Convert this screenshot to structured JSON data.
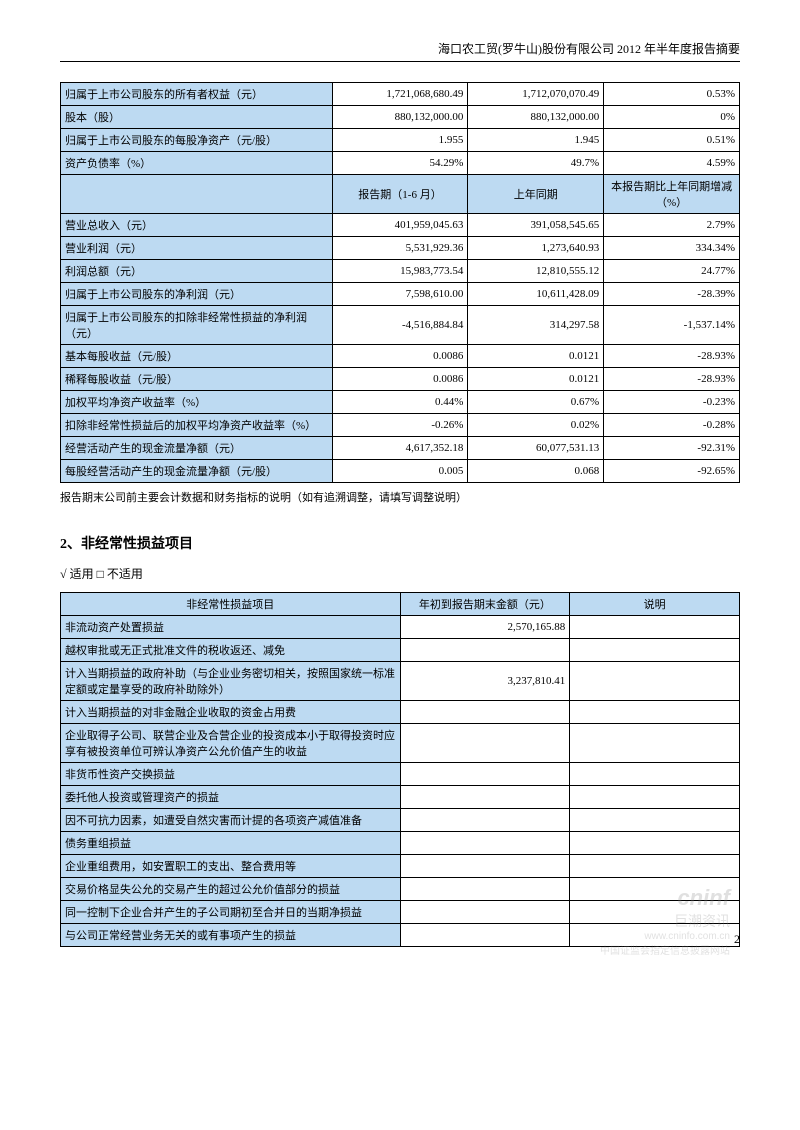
{
  "header": {
    "title": "海口农工贸(罗牛山)股份有限公司 2012 年半年度报告摘要"
  },
  "table1": {
    "rows_top": [
      {
        "label": "归属于上市公司股东的所有者权益（元）",
        "c1": "1,721,068,680.49",
        "c2": "1,712,070,070.49",
        "c3": "0.53%"
      },
      {
        "label": "股本（股）",
        "c1": "880,132,000.00",
        "c2": "880,132,000.00",
        "c3": "0%"
      },
      {
        "label": "归属于上市公司股东的每股净资产（元/股）",
        "c1": "1.955",
        "c2": "1.945",
        "c3": "0.51%"
      },
      {
        "label": "资产负债率（%）",
        "c1": "54.29%",
        "c2": "49.7%",
        "c3": "4.59%"
      }
    ],
    "mid_header": {
      "h1": "报告期（1-6 月）",
      "h2": "上年同期",
      "h3": "本报告期比上年同期增减（%）"
    },
    "rows_bottom": [
      {
        "label": "营业总收入（元）",
        "c1": "401,959,045.63",
        "c2": "391,058,545.65",
        "c3": "2.79%"
      },
      {
        "label": "营业利润（元）",
        "c1": "5,531,929.36",
        "c2": "1,273,640.93",
        "c3": "334.34%"
      },
      {
        "label": "利润总额（元）",
        "c1": "15,983,773.54",
        "c2": "12,810,555.12",
        "c3": "24.77%"
      },
      {
        "label": "归属于上市公司股东的净利润（元）",
        "c1": "7,598,610.00",
        "c2": "10,611,428.09",
        "c3": "-28.39%"
      },
      {
        "label": "归属于上市公司股东的扣除非经常性损益的净利润（元）",
        "c1": "-4,516,884.84",
        "c2": "314,297.58",
        "c3": "-1,537.14%"
      },
      {
        "label": "基本每股收益（元/股）",
        "c1": "0.0086",
        "c2": "0.0121",
        "c3": "-28.93%"
      },
      {
        "label": "稀释每股收益（元/股）",
        "c1": "0.0086",
        "c2": "0.0121",
        "c3": "-28.93%"
      },
      {
        "label": "加权平均净资产收益率（%）",
        "c1": "0.44%",
        "c2": "0.67%",
        "c3": "-0.23%"
      },
      {
        "label": "扣除非经常性损益后的加权平均净资产收益率（%）",
        "c1": "-0.26%",
        "c2": "0.02%",
        "c3": "-0.28%"
      },
      {
        "label": "经营活动产生的现金流量净额（元）",
        "c1": "4,617,352.18",
        "c2": "60,077,531.13",
        "c3": "-92.31%"
      },
      {
        "label": "每股经营活动产生的现金流量净额（元/股）",
        "c1": "0.005",
        "c2": "0.068",
        "c3": "-92.65%"
      }
    ],
    "footnote": "报告期末公司前主要会计数据和财务指标的说明（如有追溯调整，请填写调整说明）"
  },
  "section2": {
    "title": "2、非经常性损益项目",
    "apply": "√ 适用 □ 不适用"
  },
  "table2": {
    "headers": {
      "h1": "非经常性损益项目",
      "h2": "年初到报告期末金额（元）",
      "h3": "说明"
    },
    "rows": [
      {
        "label": "非流动资产处置损益",
        "amt": "2,570,165.88",
        "note": ""
      },
      {
        "label": "越权审批或无正式批准文件的税收返还、减免",
        "amt": "",
        "note": ""
      },
      {
        "label": "计入当期损益的政府补助（与企业业务密切相关，按照国家统一标准定额或定量享受的政府补助除外）",
        "amt": "3,237,810.41",
        "note": ""
      },
      {
        "label": "计入当期损益的对非金融企业收取的资金占用费",
        "amt": "",
        "note": ""
      },
      {
        "label": "企业取得子公司、联营企业及合营企业的投资成本小于取得投资时应享有被投资单位可辨认净资产公允价值产生的收益",
        "amt": "",
        "note": ""
      },
      {
        "label": "非货币性资产交换损益",
        "amt": "",
        "note": ""
      },
      {
        "label": "委托他人投资或管理资产的损益",
        "amt": "",
        "note": ""
      },
      {
        "label": "因不可抗力因素，如遭受自然灾害而计提的各项资产减值准备",
        "amt": "",
        "note": ""
      },
      {
        "label": "债务重组损益",
        "amt": "",
        "note": ""
      },
      {
        "label": "企业重组费用，如安置职工的支出、整合费用等",
        "amt": "",
        "note": ""
      },
      {
        "label": "交易价格显失公允的交易产生的超过公允价值部分的损益",
        "amt": "",
        "note": ""
      },
      {
        "label": "同一控制下企业合并产生的子公司期初至合并日的当期净损益",
        "amt": "",
        "note": ""
      },
      {
        "label": "与公司正常经营业务无关的或有事项产生的损益",
        "amt": "",
        "note": ""
      }
    ]
  },
  "pageNum": "2",
  "watermark": {
    "brand": "cninf",
    "cn": "巨潮资讯",
    "url": "www.cninfo.com.cn",
    "sub": "中国证监会指定信息披露网站"
  },
  "style": {
    "highlight_color": "#bddaf2",
    "col_widths_t1": [
      "40%",
      "20%",
      "20%",
      "20%"
    ],
    "col_widths_t2": [
      "50%",
      "25%",
      "25%"
    ]
  }
}
